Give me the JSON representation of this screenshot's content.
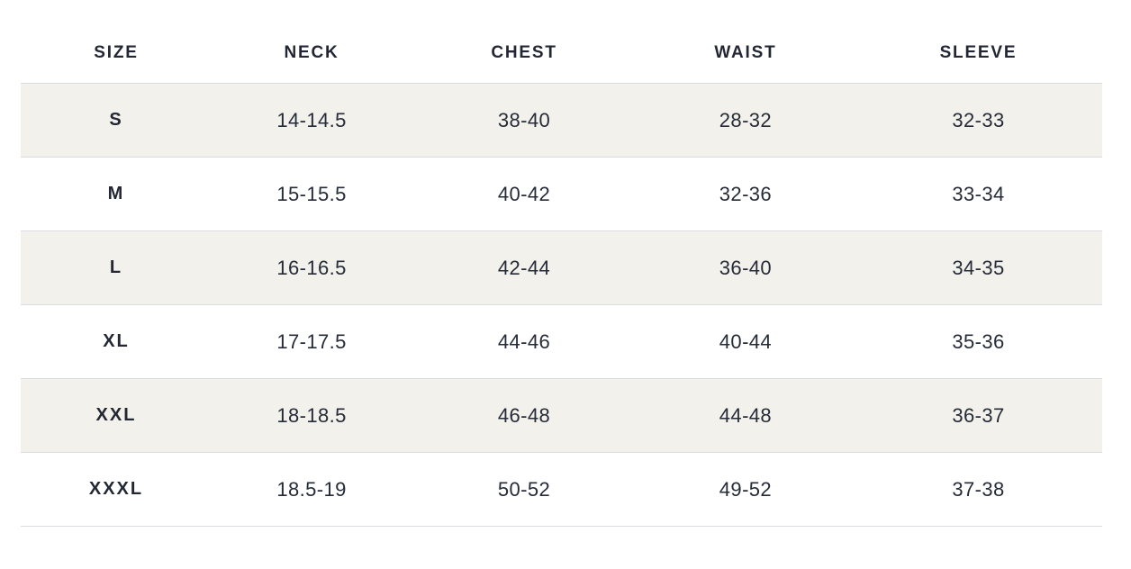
{
  "size_chart": {
    "headers": [
      "SIZE",
      "NECK",
      "CHEST",
      "WAIST",
      "SLEEVE"
    ],
    "rows": [
      {
        "size": "S",
        "neck": "14-14.5",
        "chest": "38-40",
        "waist": "28-32",
        "sleeve": "32-33"
      },
      {
        "size": "M",
        "neck": "15-15.5",
        "chest": "40-42",
        "waist": "32-36",
        "sleeve": "33-34"
      },
      {
        "size": "L",
        "neck": "16-16.5",
        "chest": "42-44",
        "waist": "36-40",
        "sleeve": "34-35"
      },
      {
        "size": "XL",
        "neck": "17-17.5",
        "chest": "44-46",
        "waist": "40-44",
        "sleeve": "35-36"
      },
      {
        "size": "XXL",
        "neck": "18-18.5",
        "chest": "46-48",
        "waist": "44-48",
        "sleeve": "36-37"
      },
      {
        "size": "XXXL",
        "neck": "18.5-19",
        "chest": "50-52",
        "waist": "49-52",
        "sleeve": "37-38"
      }
    ],
    "colors": {
      "text": "#262b38",
      "header_text": "#232733",
      "stripe_bg": "#f2f1ec",
      "row_border": "#dadce2",
      "page_bg": "#ffffff"
    }
  }
}
